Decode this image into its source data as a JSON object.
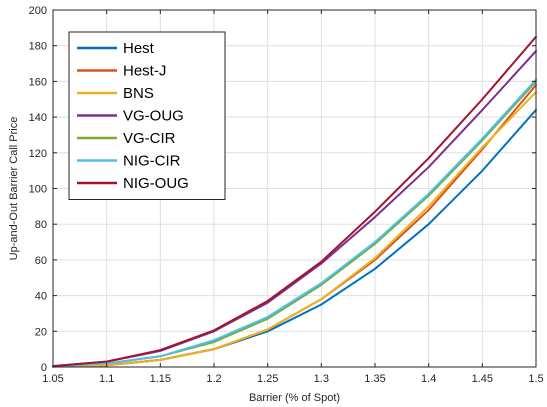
{
  "chart_data": {
    "type": "line",
    "title": "",
    "xlabel": "Barrier (% of Spot)",
    "ylabel": "Up-and-Out Barrier Call Price",
    "xlim": [
      1.05,
      1.5
    ],
    "ylim": [
      0,
      200
    ],
    "x": [
      1.05,
      1.1,
      1.15,
      1.2,
      1.25,
      1.3,
      1.35,
      1.4,
      1.45,
      1.5
    ],
    "x_ticks": [
      "1.05",
      "1.1",
      "1.15",
      "1.2",
      "1.25",
      "1.3",
      "1.35",
      "1.4",
      "1.45",
      "1.5"
    ],
    "y_ticks": [
      "0",
      "20",
      "40",
      "60",
      "80",
      "100",
      "120",
      "140",
      "160",
      "180",
      "200"
    ],
    "grid": true,
    "legend_position": "top-left",
    "series": [
      {
        "name": "Hest",
        "color": "#0072BD",
        "values": [
          0.2,
          1.0,
          4.0,
          10.0,
          20.0,
          35.0,
          55.0,
          80.0,
          110.0,
          144.0
        ]
      },
      {
        "name": "Hest-J",
        "color": "#D95319",
        "values": [
          0.2,
          1.0,
          4.0,
          10.0,
          21.0,
          38.0,
          60.0,
          88.0,
          122.0,
          158.0
        ]
      },
      {
        "name": "BNS",
        "color": "#EDB120",
        "values": [
          0.3,
          1.0,
          4.0,
          10.0,
          21.0,
          38.0,
          61.0,
          90.0,
          123.0,
          154.0
        ]
      },
      {
        "name": "VG-OUG",
        "color": "#7E2F8E",
        "values": [
          0.5,
          3.0,
          9.0,
          20.0,
          36.0,
          58.0,
          84.0,
          112.0,
          144.0,
          177.0
        ]
      },
      {
        "name": "VG-CIR",
        "color": "#77AC30",
        "values": [
          0.4,
          2.0,
          6.0,
          14.0,
          27.0,
          46.0,
          69.0,
          96.0,
          127.0,
          160.0
        ]
      },
      {
        "name": "NIG-CIR",
        "color": "#4DBEEE",
        "values": [
          0.4,
          2.0,
          6.0,
          15.0,
          28.0,
          47.0,
          70.0,
          97.0,
          128.0,
          161.0
        ]
      },
      {
        "name": "NIG-OUG",
        "color": "#A2142F",
        "values": [
          0.5,
          3.0,
          9.5,
          20.5,
          37.0,
          59.0,
          87.0,
          117.0,
          150.0,
          185.0
        ]
      }
    ]
  }
}
